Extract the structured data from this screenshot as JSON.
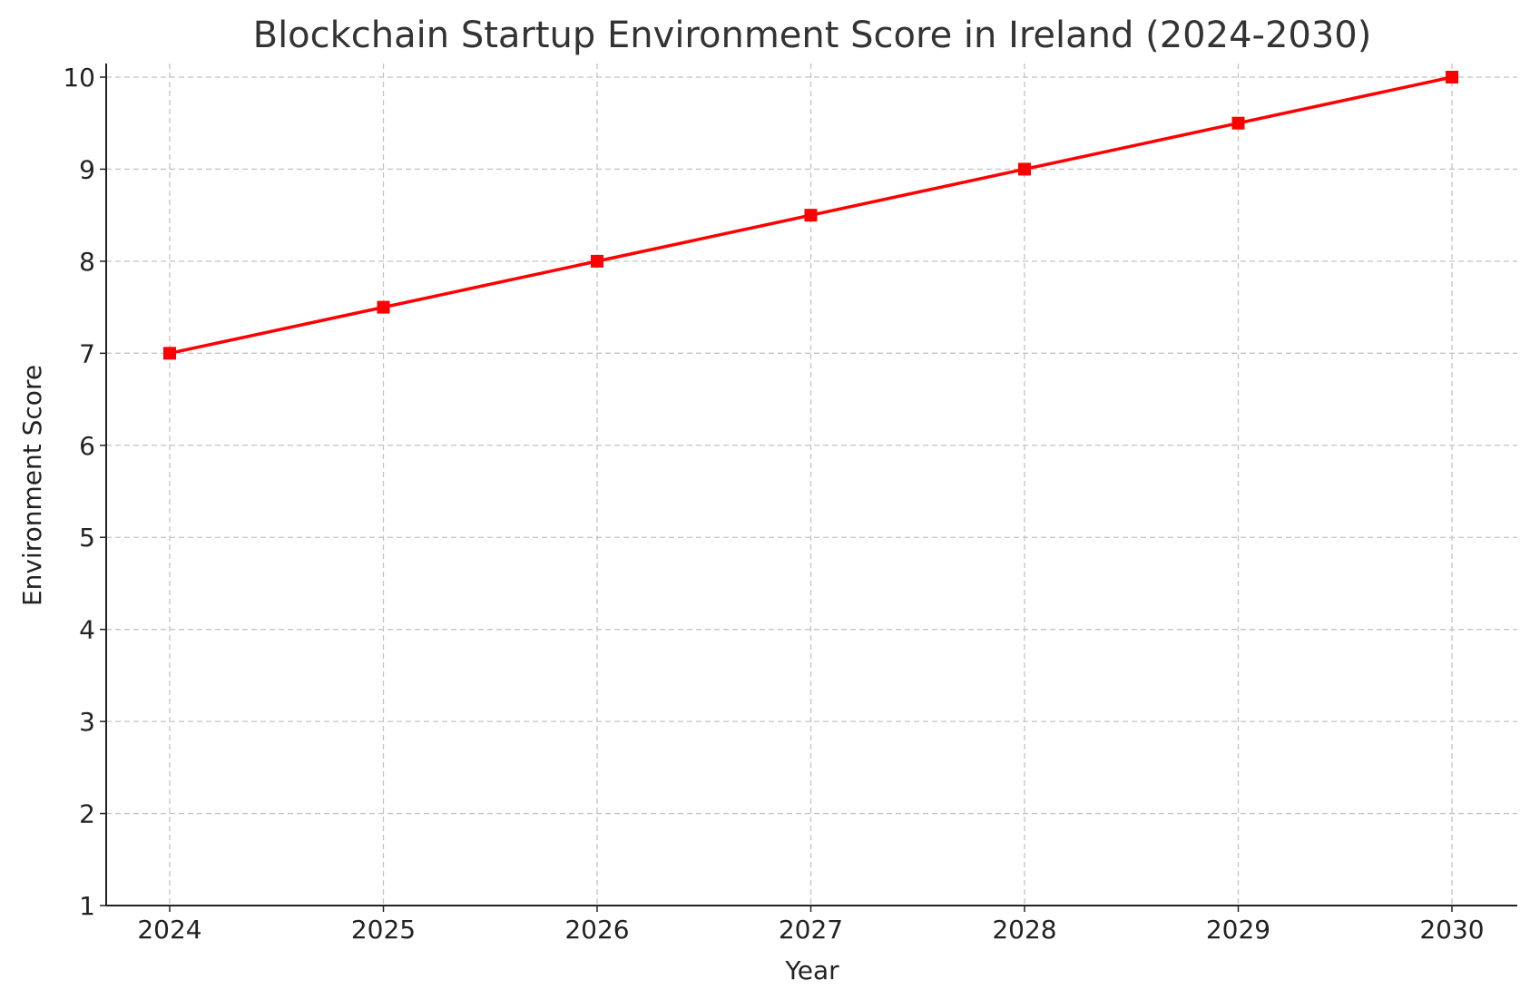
{
  "chart_data": {
    "type": "line",
    "title": "Blockchain Startup Environment Score in Ireland (2024-2030)",
    "xlabel": "Year",
    "ylabel": "Environment Score",
    "x": [
      "2024",
      "2025",
      "2026",
      "2027",
      "2028",
      "2029",
      "2030"
    ],
    "series": [
      {
        "values": [
          7,
          7.5,
          8,
          8.5,
          9,
          9.5,
          10
        ],
        "color": "#ff0000",
        "marker": "square"
      }
    ],
    "yticks": [
      "1",
      "2",
      "3",
      "4",
      "5",
      "6",
      "7",
      "8",
      "9",
      "10"
    ],
    "ylim": [
      1,
      10.15
    ],
    "grid": true,
    "legend": "none"
  }
}
